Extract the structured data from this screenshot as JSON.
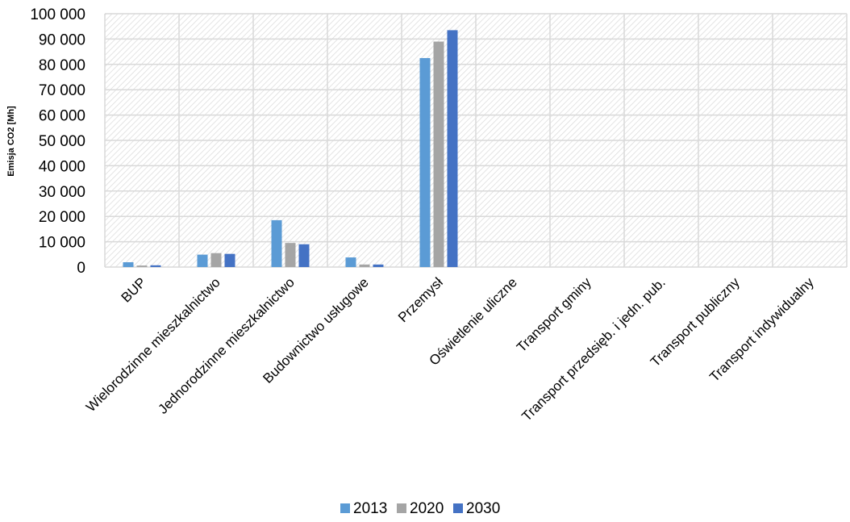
{
  "chart_data": {
    "type": "bar",
    "title": "",
    "xlabel": "",
    "ylabel": "Emisja CO2 [Mh]",
    "ylim": [
      0,
      100000
    ],
    "yticks": [
      0,
      10000,
      20000,
      30000,
      40000,
      50000,
      60000,
      70000,
      80000,
      90000,
      100000
    ],
    "ytick_labels": [
      "0",
      "10 000",
      "20 000",
      "30 000",
      "40 000",
      "50 000",
      "60 000",
      "70 000",
      "80 000",
      "90 000",
      "100 000"
    ],
    "grid": true,
    "legend_position": "bottom",
    "categories": [
      "BUP",
      "Wielorodzinne mieszkalnictwo",
      "Jednorodzinne mieszkalnictwo",
      "Budownictwo usługowe",
      "Przemysł",
      "Oświetlenie uliczne",
      "Transport gminy",
      "Transport przedsięb. i jedn. pub.",
      "Transport publiczny",
      "Transport indywidualny"
    ],
    "series": [
      {
        "name": "2013",
        "color": "#5B9BD5",
        "values": [
          1900,
          4900,
          18500,
          3800,
          82500,
          0,
          0,
          0,
          0,
          0
        ]
      },
      {
        "name": "2020",
        "color": "#A5A5A5",
        "values": [
          600,
          5500,
          9500,
          1000,
          89000,
          0,
          0,
          0,
          0,
          0
        ]
      },
      {
        "name": "2030",
        "color": "#4472C4",
        "values": [
          700,
          5200,
          9000,
          1000,
          93500,
          0,
          0,
          0,
          0,
          0
        ]
      }
    ]
  }
}
